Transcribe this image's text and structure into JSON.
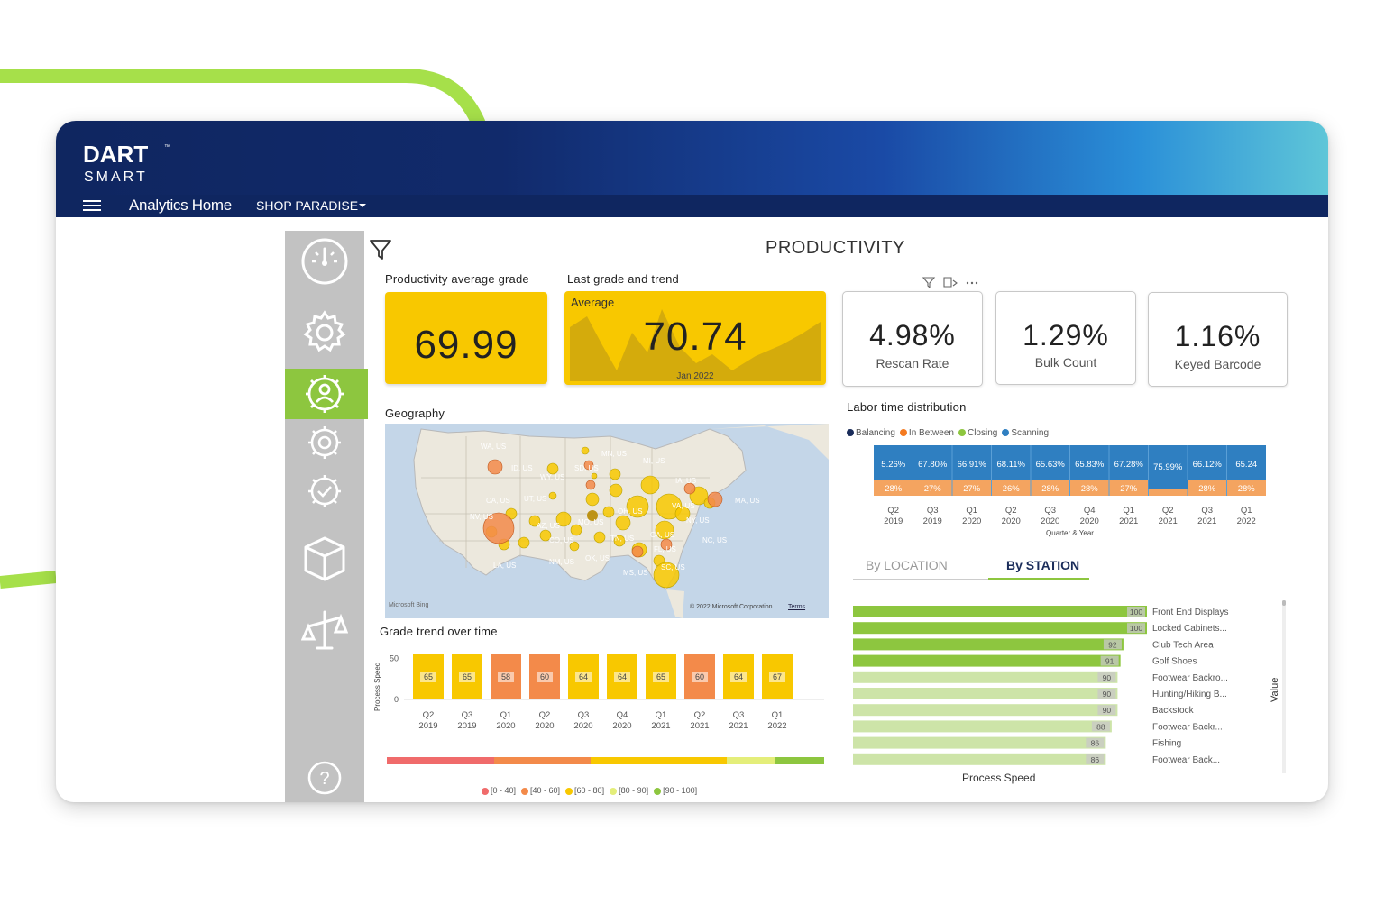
{
  "colors": {
    "navy": "#0f2660",
    "green_accent": "#8dc63f",
    "kpi_yellow": "#f8c800",
    "sidebar_gray": "#c2c2c2",
    "labor_blue": "#2f7fc1",
    "labor_orange": "#f4a460"
  },
  "brand": {
    "name": "DART",
    "tm": "™",
    "sub": "SMART"
  },
  "nav": {
    "menu_icon": "hamburger-icon",
    "home": "Analytics Home",
    "store": "SHOP PARADISE"
  },
  "sidebar": {
    "icons": [
      "gauge-icon",
      "gear-icon",
      "gear-person-icon",
      "target-gear-icon",
      "check-gear-icon",
      "box-icon",
      "scale-icon",
      "help-icon"
    ],
    "active": "gear-person-icon",
    "help_label": "?"
  },
  "page_title": "PRODUCTIVITY",
  "kpis": {
    "avg_grade": {
      "label": "Productivity average grade",
      "value": "69.99"
    },
    "last_grade": {
      "label": "Last grade and trend",
      "sub": "Average",
      "value": "70.74",
      "period": "Jan 2022"
    },
    "cards": [
      {
        "value": "4.98%",
        "label": "Rescan Rate"
      },
      {
        "value": "1.29%",
        "label": "Bulk Count"
      },
      {
        "value": "1.16%",
        "label": "Keyed Barcode"
      }
    ]
  },
  "geography": {
    "label": "Geography",
    "bing": "Microsoft Bing",
    "copyright": "© 2022 Microsoft Corporation",
    "terms": "Terms",
    "places": [
      "WA, US",
      "ID, US",
      "WY, US",
      "MN, US",
      "SD, US",
      "MI, US",
      "CA, US",
      "UT, US",
      "NV, US",
      "IA, US",
      "MA, US",
      "OH, US",
      "VA, US",
      "NY, US",
      "AZ, US",
      "CO, US",
      "MO, US",
      "TN, US",
      "GA, US",
      "NC, US",
      "LA, US",
      "NM, US",
      "OK, US",
      "FL, US",
      "MS, US",
      "SC, US"
    ]
  },
  "grade_trend": {
    "label": "Grade trend over time",
    "ylabel": "Process Speed",
    "legend": [
      "[0 - 40]",
      "[40 - 60]",
      "[60 - 80]",
      "[80 - 90]",
      "[90 - 100]"
    ],
    "legend_colors": [
      "#f06b6b",
      "#f38a4a",
      "#f8c800",
      "#e4ee7a",
      "#8dc63f"
    ]
  },
  "labor": {
    "label": "Labor time distribution",
    "legend": [
      {
        "name": "Balancing",
        "color": "#1a2c5a"
      },
      {
        "name": "In Between",
        "color": "#f47a20"
      },
      {
        "name": "Closing",
        "color": "#8dc63f"
      },
      {
        "name": "Scanning",
        "color": "#2f7fc1"
      }
    ],
    "xaxis_title": "Quarter & Year"
  },
  "station": {
    "tabs": [
      "By LOCATION",
      "By STATION"
    ],
    "active_tab": "By STATION",
    "xlabel": "Process Speed",
    "ylabel": "Value"
  },
  "chart_data": [
    {
      "type": "bar",
      "title": "Grade trend over time",
      "ylabel": "Process Speed",
      "ylim": [
        0,
        55
      ],
      "yticks": [
        0,
        50
      ],
      "categories": [
        "Q2 2019",
        "Q3 2019",
        "Q1 2020",
        "Q2 2020",
        "Q3 2020",
        "Q4 2020",
        "Q1 2021",
        "Q2 2021",
        "Q3 2021",
        "Q1 2022"
      ],
      "values": [
        65,
        65,
        58,
        60,
        64,
        64,
        65,
        60,
        64,
        67
      ],
      "bar_colors": [
        "#f8c800",
        "#f8c800",
        "#f38a4a",
        "#f38a4a",
        "#f8c800",
        "#f8c800",
        "#f8c800",
        "#f38a4a",
        "#f8c800",
        "#f8c800"
      ]
    },
    {
      "type": "area",
      "title": "Labor time distribution",
      "xlabel": "Quarter & Year",
      "categories": [
        "Q2 2019",
        "Q3 2019",
        "Q1 2020",
        "Q2 2020",
        "Q3 2020",
        "Q4 2020",
        "Q1 2021",
        "Q2 2021",
        "Q3 2021",
        "Q1 2022"
      ],
      "series": [
        {
          "name": "Scanning",
          "labels": [
            "5.26%",
            "67.80%",
            "66.91%",
            "68.11%",
            "65.63%",
            "65.83%",
            "67.28%",
            "75.99%",
            "66.12%",
            "65.24"
          ]
        },
        {
          "name": "In Between",
          "labels": [
            "28%",
            "27%",
            "27%",
            "26%",
            "28%",
            "28%",
            "27%",
            "",
            "28%",
            "28%"
          ]
        }
      ]
    },
    {
      "type": "bar",
      "title": "By STATION",
      "xlabel": "Process Speed",
      "ylabel": "Value",
      "categories": [
        "Front End Displays",
        "Locked Cabinets...",
        "Club Tech Area",
        "Golf Shoes",
        "Footwear Backro...",
        "Hunting/Hiking B...",
        "Backstock",
        "Footwear Backr...",
        "Fishing",
        "Footwear Back..."
      ],
      "values": [
        100,
        100,
        92,
        91,
        90,
        90,
        90,
        88,
        86,
        86
      ]
    },
    {
      "type": "scatter",
      "title": "Geography",
      "bubbles": [
        {
          "name": "WA, US",
          "color": "#f38a4a"
        },
        {
          "name": "NV, US",
          "color": "#f38a4a"
        },
        {
          "name": "CA, US",
          "color": "#f8c800"
        },
        {
          "name": "OH, US",
          "color": "#f8c800"
        },
        {
          "name": "NY, US",
          "color": "#f8c800"
        },
        {
          "name": "GA, US",
          "color": "#f8c800"
        },
        {
          "name": "SC, US",
          "color": "#f8c800"
        },
        {
          "name": "MO, US",
          "color": "#c8a000"
        }
      ]
    }
  ]
}
